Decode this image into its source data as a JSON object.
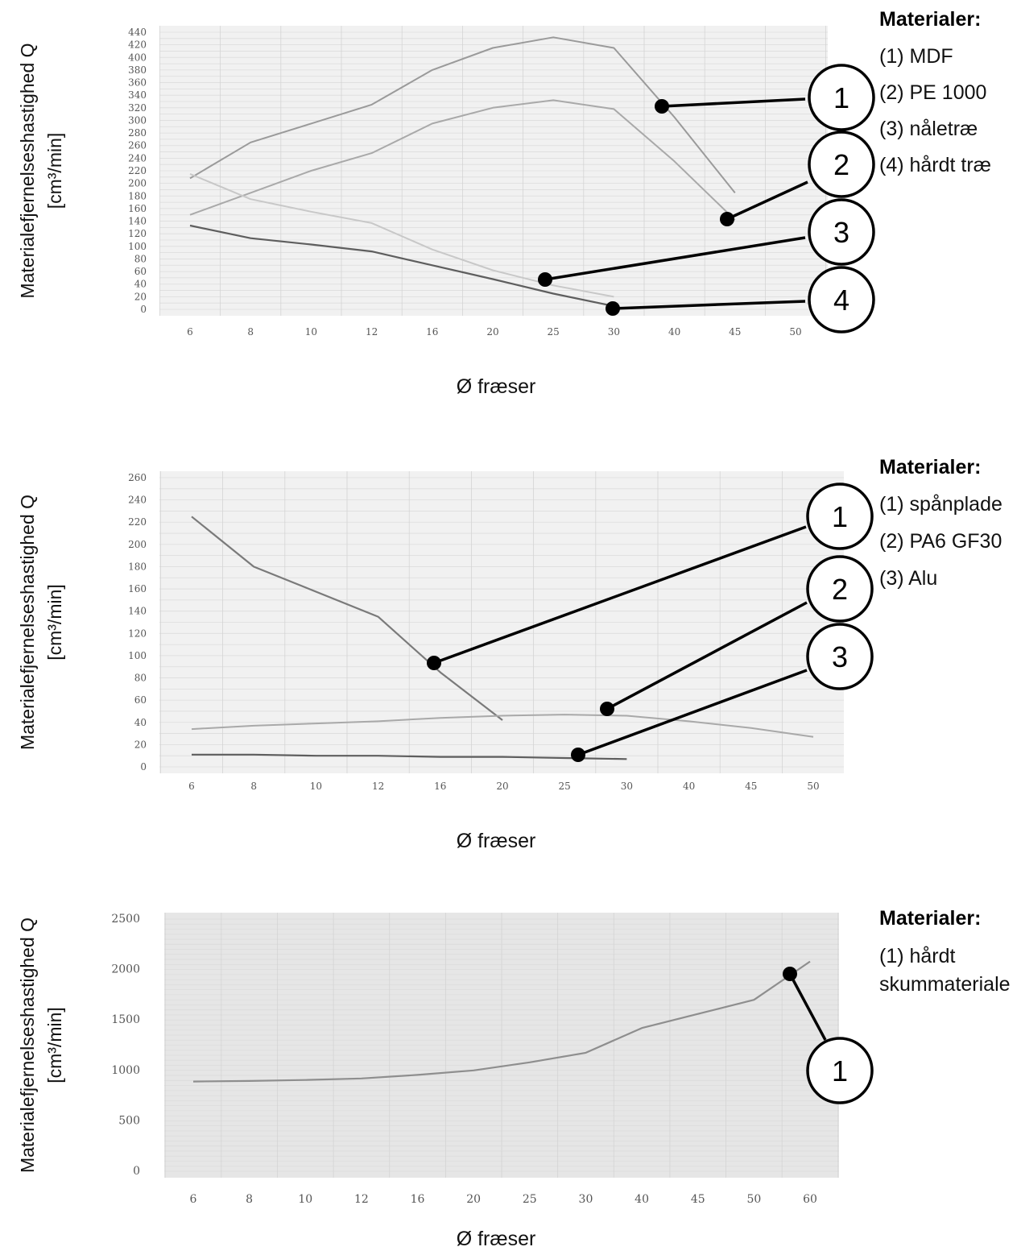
{
  "chart_data": [
    {
      "type": "line",
      "categories": [
        "6",
        "8",
        "10",
        "12",
        "16",
        "20",
        "25",
        "30",
        "40",
        "45",
        "50"
      ],
      "series": [
        {
          "values": [
            208,
            265,
            295,
            325,
            380,
            415,
            432,
            415,
            305,
            185,
            null
          ]
        },
        {
          "values": [
            150,
            185,
            220,
            248,
            295,
            320,
            332,
            318,
            235,
            142,
            null
          ]
        },
        {
          "values": [
            215,
            175,
            155,
            137,
            95,
            62,
            38,
            20,
            null,
            null,
            null
          ]
        },
        {
          "values": [
            133,
            113,
            103,
            92,
            70,
            48,
            25,
            5,
            null,
            null,
            null
          ]
        }
      ],
      "y_ticks": [
        "0",
        "20",
        "40",
        "60",
        "80",
        "100",
        "120",
        "140",
        "160",
        "180",
        "200",
        "220",
        "240",
        "260",
        "280",
        "300",
        "320",
        "340",
        "360",
        "380",
        "400",
        "420",
        "440"
      ],
      "ylim": [
        0,
        440
      ],
      "ylabel_line1": "Materialefjernelseshastighed Q",
      "ylabel_line2": "[cm³/min]",
      "xlabel": "Ø fræser",
      "grid": true,
      "callouts": [
        "1",
        "2",
        "3",
        "4"
      ],
      "legend": {
        "title": "Materialer:",
        "items": [
          "(1) MDF",
          "(2) PE 1000",
          "(3) nåletræ",
          "(4) hårdt træ"
        ]
      }
    },
    {
      "type": "line",
      "categories": [
        "6",
        "8",
        "10",
        "12",
        "16",
        "20",
        "25",
        "30",
        "40",
        "45",
        "50"
      ],
      "series": [
        {
          "values": [
            225,
            180,
            null,
            135,
            85,
            42,
            null,
            null,
            null,
            null,
            null
          ]
        },
        {
          "values": [
            34,
            37,
            39,
            41,
            44,
            46,
            47,
            46,
            41,
            35,
            27
          ]
        },
        {
          "values": [
            11,
            11,
            10,
            10,
            9,
            9,
            8,
            7,
            null,
            null,
            null
          ]
        }
      ],
      "y_ticks": [
        "0",
        "20",
        "40",
        "60",
        "80",
        "100",
        "120",
        "140",
        "160",
        "180",
        "200",
        "220",
        "240",
        "260"
      ],
      "ylim": [
        0,
        260
      ],
      "ylabel_line1": "Materialefjernelseshastighed Q",
      "ylabel_line2": "[cm³/min]",
      "xlabel": "Ø fræser",
      "grid": true,
      "callouts": [
        "1",
        "2",
        "3"
      ],
      "legend": {
        "title": "Materialer:",
        "items": [
          "(1) spånplade",
          "(2) PA6 GF30",
          "(3) Alu"
        ]
      }
    },
    {
      "type": "line",
      "categories": [
        "6",
        "8",
        "10",
        "12",
        "16",
        "20",
        "25",
        "30",
        "40",
        "45",
        "50",
        "60"
      ],
      "series": [
        {
          "values": [
            890,
            895,
            905,
            920,
            955,
            1000,
            1080,
            1175,
            1420,
            1560,
            1700,
            2080
          ]
        }
      ],
      "y_ticks": [
        "0",
        "500",
        "1000",
        "1500",
        "2000",
        "2500"
      ],
      "ylim": [
        0,
        2500
      ],
      "ylabel_line1": "Materialefjernelseshastighed Q",
      "ylabel_line2": "[cm³/min]",
      "xlabel": "Ø fræser",
      "grid": true,
      "callouts": [
        "1"
      ],
      "legend": {
        "title": "Materialer:",
        "items": [
          "(1) hårdt",
          "skummateriale"
        ]
      }
    }
  ]
}
